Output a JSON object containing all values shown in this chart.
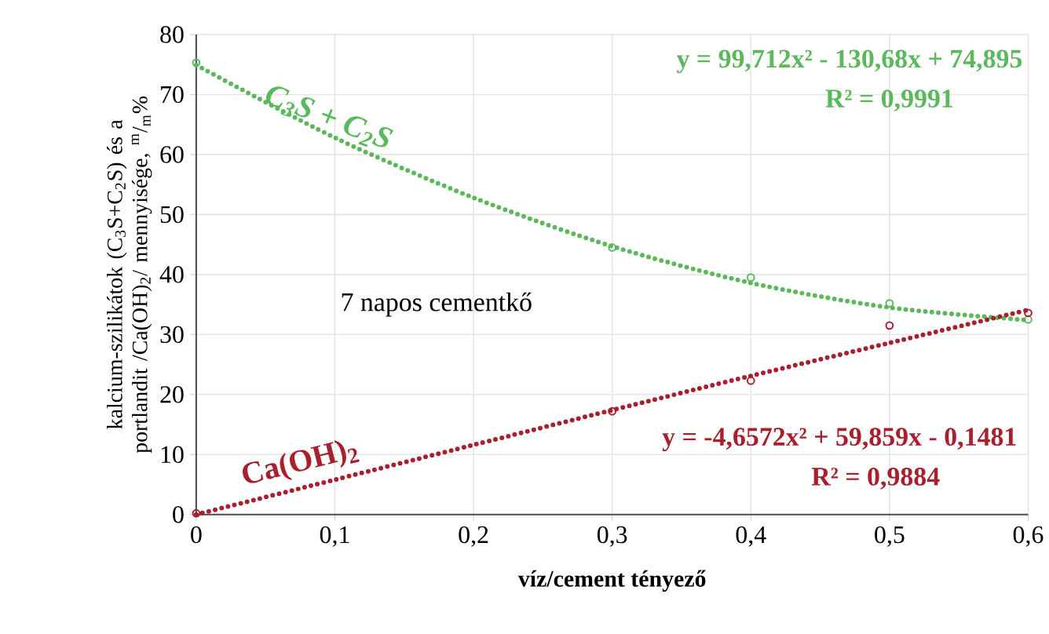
{
  "chart_data": {
    "type": "scatter",
    "xlabel": "víz/cement tényező",
    "ylabel": "kalcium-szilikátok (C$_{3}$S+C$_{2}$S) és a portlandit /Ca(OH)$_{2}$/ mennyisége, $^{m}$/$_{m}$%",
    "annotations": [
      "7 napos cementkő",
      "y = 99,712x² - 130,68x + 74,895",
      "R² = 0,9991",
      "y = -4,6572x² + 59,859x - 0,1481",
      "R² = 0,9884"
    ],
    "series": [
      {
        "name": "C$_{3}$S + C$_{2}$S",
        "color": "#5cb85c",
        "marker": "circle",
        "x": [
          0,
          0.3,
          0.4,
          0.5,
          0.6
        ],
        "values": [
          75.3,
          44.5,
          39.5,
          35.2,
          32.5
        ]
      },
      {
        "type": "line",
        "color": "#5cb85c",
        "line_style": "dotted",
        "marker": "none",
        "x": [
          0,
          0.1,
          0.2,
          0.3,
          0.4,
          0.5,
          0.6
        ],
        "values": [
          74.9,
          62.8,
          52.8,
          44.7,
          38.6,
          34.5,
          32.4
        ]
      },
      {
        "name": "Ca(OH)$_{2}$",
        "color": "#a8202c",
        "marker": "circle",
        "x": [
          0,
          0.3,
          0.4,
          0.5,
          0.6
        ],
        "values": [
          0.2,
          17.2,
          22.3,
          31.5,
          33.6
        ]
      },
      {
        "type": "line",
        "color": "#a8202c",
        "line_style": "dotted",
        "marker": "none",
        "x": [
          0,
          0.1,
          0.2,
          0.3,
          0.4,
          0.5,
          0.6
        ],
        "values": [
          0,
          5.8,
          11.6,
          17.4,
          23.1,
          28.6,
          34.1
        ]
      }
    ],
    "xlim": [
      0,
      0.6
    ],
    "ylim": [
      0,
      80
    ],
    "xticks": [
      0,
      {
        "value": 0.1,
        "label": "0,1"
      },
      {
        "value": 0.2,
        "label": "0,2"
      },
      {
        "value": 0.3,
        "label": "0,3"
      },
      {
        "value": 0.4,
        "label": "0,4"
      },
      {
        "value": 0.5,
        "label": "0,5"
      },
      {
        "value": 0.6,
        "label": "0,6"
      }
    ],
    "yticks": [
      0,
      10,
      20,
      30,
      40,
      50,
      60,
      70,
      80
    ],
    "grid": true,
    "legend": false
  }
}
